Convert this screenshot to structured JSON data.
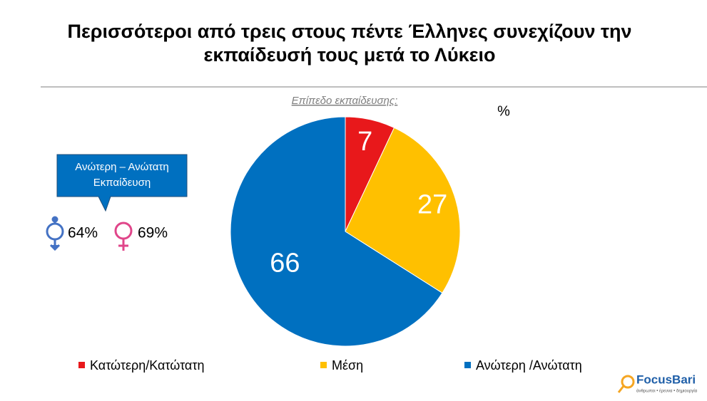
{
  "chart_data": {
    "type": "pie",
    "title": "Περισσότεροι από τρεις στους πέντε Έλληνες συνεχίζουν την εκπαίδευσή τους μετά το Λύκειο",
    "subtitle": "Επίπεδο εκπαίδευσης:",
    "unit": "%",
    "categories": [
      "Κατώτερη/Κατώτατη",
      "Μέση",
      "Ανώτερη /Ανώτατη"
    ],
    "values": [
      7,
      27,
      66
    ],
    "colors": [
      "#e8181b",
      "#ffc000",
      "#0070c0"
    ],
    "annotations": {
      "callout": "Ανώτερη – Ανώτατη Εκπαίδευση",
      "men": "64%",
      "women": "69%"
    }
  },
  "logo": {
    "name": "FocusBari",
    "tagline": "άνθρωποι • έρευνα • δημιουργία"
  }
}
